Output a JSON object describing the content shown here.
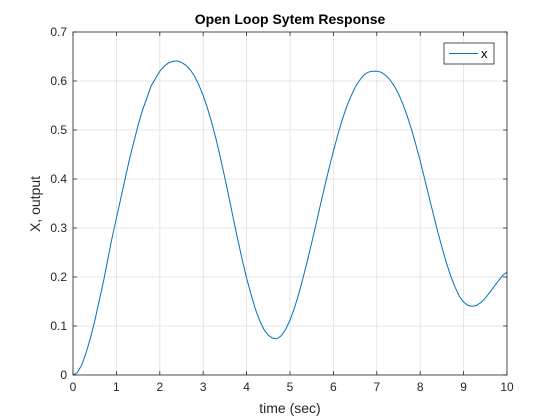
{
  "chart_data": {
    "type": "line",
    "title": "Open Loop Sytem Response",
    "xlabel": "time (sec)",
    "ylabel": "X, output",
    "xlim": [
      0,
      10
    ],
    "ylim": [
      0,
      0.7
    ],
    "xticks": [
      "0",
      "1",
      "2",
      "3",
      "4",
      "5",
      "6",
      "7",
      "8",
      "9",
      "10"
    ],
    "yticks": [
      "0",
      "0.1",
      "0.2",
      "0.3",
      "0.4",
      "0.5",
      "0.6",
      "0.7"
    ],
    "grid": true,
    "legend_position": "top-right",
    "line_color": "#0072bd",
    "series": [
      {
        "name": "x",
        "x": [
          0,
          0.1,
          0.2,
          0.3,
          0.4,
          0.5,
          0.6,
          0.7,
          0.8,
          0.9,
          1.0,
          1.1,
          1.2,
          1.3,
          1.4,
          1.5,
          1.6,
          1.7,
          1.8,
          1.9,
          2.0,
          2.1,
          2.2,
          2.3,
          2.4,
          2.5,
          2.6,
          2.7,
          2.8,
          2.9,
          3.0,
          3.1,
          3.2,
          3.3,
          3.4,
          3.5,
          3.6,
          3.7,
          3.8,
          3.9,
          4.0,
          4.1,
          4.2,
          4.3,
          4.4,
          4.5,
          4.6,
          4.7,
          4.8,
          4.9,
          5.0,
          5.1,
          5.2,
          5.3,
          5.4,
          5.5,
          5.6,
          5.7,
          5.8,
          5.9,
          6.0,
          6.1,
          6.2,
          6.3,
          6.4,
          6.5,
          6.6,
          6.7,
          6.8,
          6.9,
          7.0,
          7.1,
          7.2,
          7.3,
          7.4,
          7.5,
          7.6,
          7.7,
          7.8,
          7.9,
          8.0,
          8.1,
          8.2,
          8.3,
          8.4,
          8.5,
          8.6,
          8.7,
          8.8,
          8.9,
          9.0,
          9.1,
          9.2,
          9.3,
          9.4,
          9.5,
          9.6,
          9.7,
          9.8,
          9.9,
          10.0
        ],
        "values": [
          0,
          0.005,
          0.02,
          0.045,
          0.075,
          0.11,
          0.15,
          0.19,
          0.235,
          0.28,
          0.32,
          0.36,
          0.4,
          0.44,
          0.475,
          0.51,
          0.54,
          0.565,
          0.59,
          0.605,
          0.62,
          0.63,
          0.637,
          0.64,
          0.641,
          0.638,
          0.632,
          0.623,
          0.61,
          0.592,
          0.57,
          0.544,
          0.514,
          0.48,
          0.442,
          0.402,
          0.36,
          0.317,
          0.275,
          0.235,
          0.198,
          0.165,
          0.135,
          0.111,
          0.093,
          0.081,
          0.075,
          0.074,
          0.08,
          0.093,
          0.112,
          0.136,
          0.165,
          0.198,
          0.233,
          0.27,
          0.308,
          0.347,
          0.385,
          0.422,
          0.457,
          0.49,
          0.52,
          0.546,
          0.568,
          0.587,
          0.601,
          0.612,
          0.618,
          0.62,
          0.62,
          0.618,
          0.612,
          0.603,
          0.59,
          0.574,
          0.553,
          0.529,
          0.501,
          0.47,
          0.437,
          0.401,
          0.365,
          0.329,
          0.294,
          0.261,
          0.23,
          0.203,
          0.18,
          0.161,
          0.149,
          0.142,
          0.14,
          0.142,
          0.148,
          0.157,
          0.168,
          0.18,
          0.192,
          0.203,
          0.21
        ]
      }
    ]
  }
}
